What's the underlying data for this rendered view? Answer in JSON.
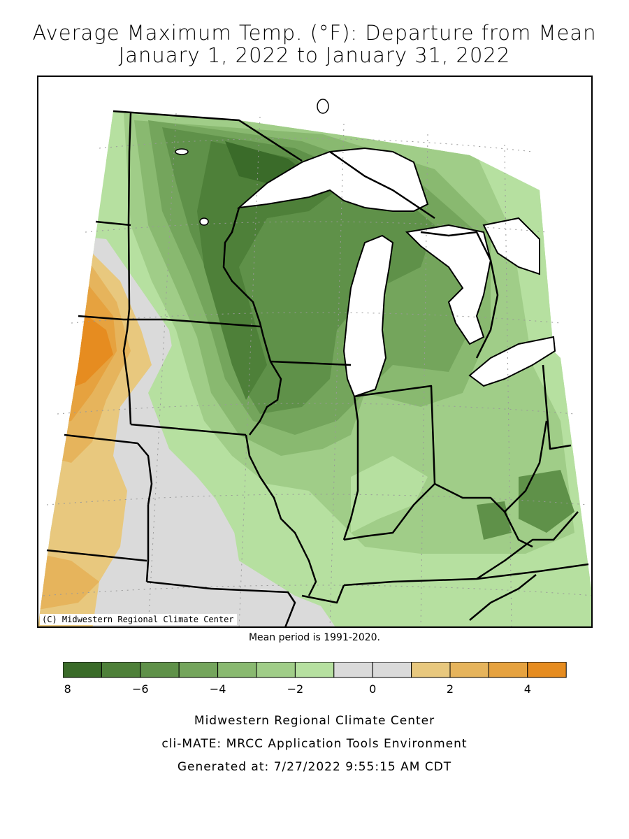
{
  "title": {
    "line1": "Average Maximum Temp. (°F): Departure from Mean",
    "line2": "January 1, 2022 to January 31, 2022"
  },
  "map": {
    "copyright": "(C) Midwestern Regional Climate Center",
    "fill_levels": [
      {
        "range": "-8 to -7",
        "color": "#3a6b29"
      },
      {
        "range": "-7 to -6",
        "color": "#4e8039"
      },
      {
        "range": "-6 to -5",
        "color": "#5f9149"
      },
      {
        "range": "-5 to -4",
        "color": "#74a55c"
      },
      {
        "range": "-4 to -3",
        "color": "#89b970"
      },
      {
        "range": "-3 to -2",
        "color": "#a0cd88"
      },
      {
        "range": "-2 to -1",
        "color": "#b6e0a0"
      },
      {
        "range": "-1 to 0",
        "color": "#dadada"
      },
      {
        "range": "0 to 1",
        "color": "#dadada"
      },
      {
        "range": "1 to 2",
        "color": "#e8c87e"
      },
      {
        "range": "2 to 3",
        "color": "#e6b45c"
      },
      {
        "range": "3 to 4",
        "color": "#e6a23f"
      },
      {
        "range": "4 to 5",
        "color": "#e68c20"
      }
    ],
    "lake_color": "#ffffff",
    "border_color": "#000000"
  },
  "mean_period": "Mean period is 1991-2020.",
  "legend": {
    "colors": [
      "#3a6b29",
      "#4e8039",
      "#5f9149",
      "#74a55c",
      "#89b970",
      "#a0cd88",
      "#b6e0a0",
      "#dadada",
      "#dadada",
      "#e8c87e",
      "#e6b45c",
      "#e6a23f",
      "#e68c20"
    ],
    "min": -8,
    "max": 5,
    "tick_labels": [
      "−8",
      "−6",
      "−4",
      "−2",
      "0",
      "2",
      "4"
    ],
    "tick_values": [
      -8,
      -6,
      -4,
      -2,
      0,
      2,
      4
    ]
  },
  "credits": {
    "org": "Midwestern Regional Climate Center",
    "app": "cli-MATE: MRCC Application Tools Environment",
    "generated": "Generated at: 7/27/2022 9:55:15 AM CDT"
  }
}
